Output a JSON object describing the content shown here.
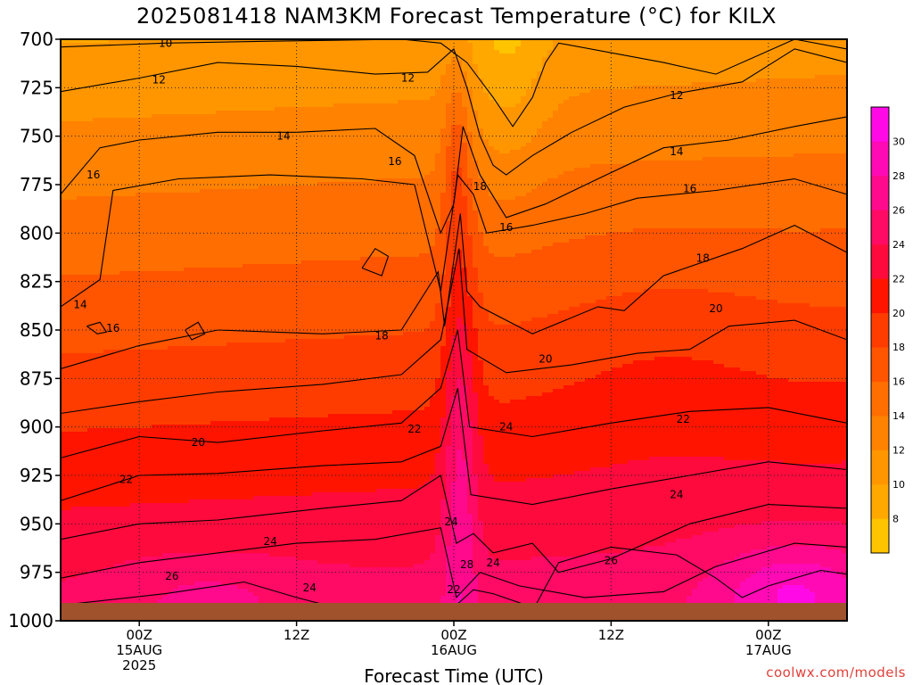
{
  "chart_data": {
    "type": "heatmap",
    "title": "2025081418 NAM3KM Forecast Temperature (°C) for KILX",
    "xlabel": "Forecast Time (UTC)",
    "ylabel": "",
    "y_axis": {
      "ticks": [
        "700",
        "725",
        "750",
        "775",
        "800",
        "825",
        "850",
        "875",
        "900",
        "925",
        "950",
        "975",
        "1000"
      ],
      "range_hpa": [
        700,
        1000
      ],
      "orientation": "pressure increasing downward"
    },
    "x_axis": {
      "range_hours_utc": [
        -6,
        54
      ],
      "ticks": [
        {
          "hour": 0,
          "line1": "00Z",
          "line2": "15AUG",
          "line3": "2025"
        },
        {
          "hour": 12,
          "line1": "12Z",
          "line2": "",
          "line3": ""
        },
        {
          "hour": 24,
          "line1": "00Z",
          "line2": "16AUG",
          "line3": ""
        },
        {
          "hour": 36,
          "line1": "12Z",
          "line2": "",
          "line3": ""
        },
        {
          "hour": 48,
          "line1": "00Z",
          "line2": "17AUG",
          "line3": ""
        }
      ]
    },
    "grid": true,
    "colorbar": {
      "placement": "right",
      "levels": [
        6,
        8,
        10,
        12,
        14,
        16,
        18,
        20,
        22,
        24,
        26,
        28,
        30,
        32
      ],
      "labels": [
        "8",
        "10",
        "12",
        "14",
        "16",
        "18",
        "20",
        "22",
        "24",
        "26",
        "28",
        "30"
      ],
      "colors": [
        "#ffc400",
        "#ffa800",
        "#ff9600",
        "#ff8200",
        "#ff6e00",
        "#ff5400",
        "#ff3c00",
        "#ff1400",
        "#ff0a3c",
        "#ff0a64",
        "#ff0a8c",
        "#ff0ab4",
        "#ff0ae6"
      ]
    },
    "contour_labels": [
      {
        "text": "10",
        "hour": 2,
        "hpa": 702
      },
      {
        "text": "12",
        "hour": 1.5,
        "hpa": 721
      },
      {
        "text": "12",
        "hour": 20.5,
        "hpa": 720
      },
      {
        "text": "12",
        "hour": 41,
        "hpa": 729
      },
      {
        "text": "14",
        "hour": 11,
        "hpa": 750
      },
      {
        "text": "14",
        "hour": 41,
        "hpa": 758
      },
      {
        "text": "16",
        "hour": -3.5,
        "hpa": 770
      },
      {
        "text": "16",
        "hour": 19.5,
        "hpa": 763
      },
      {
        "text": "16",
        "hour": 42,
        "hpa": 777
      },
      {
        "text": "16",
        "hour": 28,
        "hpa": 797
      },
      {
        "text": "18",
        "hour": 26,
        "hpa": 776
      },
      {
        "text": "18",
        "hour": 43,
        "hpa": 813
      },
      {
        "text": "18",
        "hour": 18.5,
        "hpa": 853
      },
      {
        "text": "14",
        "hour": -4.5,
        "hpa": 837
      },
      {
        "text": "16",
        "hour": -2,
        "hpa": 849
      },
      {
        "text": "20",
        "hour": 44,
        "hpa": 839
      },
      {
        "text": "20",
        "hour": 31,
        "hpa": 865
      },
      {
        "text": "22",
        "hour": 41.5,
        "hpa": 896
      },
      {
        "text": "22",
        "hour": 21,
        "hpa": 901
      },
      {
        "text": "24",
        "hour": 28,
        "hpa": 900
      },
      {
        "text": "20",
        "hour": 4.5,
        "hpa": 908
      },
      {
        "text": "24",
        "hour": 41,
        "hpa": 935
      },
      {
        "text": "22",
        "hour": -1,
        "hpa": 927
      },
      {
        "text": "24",
        "hour": 23.8,
        "hpa": 949
      },
      {
        "text": "24",
        "hour": 10,
        "hpa": 959
      },
      {
        "text": "26",
        "hour": 36,
        "hpa": 969
      },
      {
        "text": "26",
        "hour": 2.5,
        "hpa": 977
      },
      {
        "text": "28",
        "hour": 25,
        "hpa": 971
      },
      {
        "text": "24",
        "hour": 27,
        "hpa": 970
      },
      {
        "text": "22",
        "hour": 24,
        "hpa": 984
      },
      {
        "text": "24",
        "hour": 13,
        "hpa": 983
      }
    ]
  },
  "credit": "coolwx.com/models"
}
